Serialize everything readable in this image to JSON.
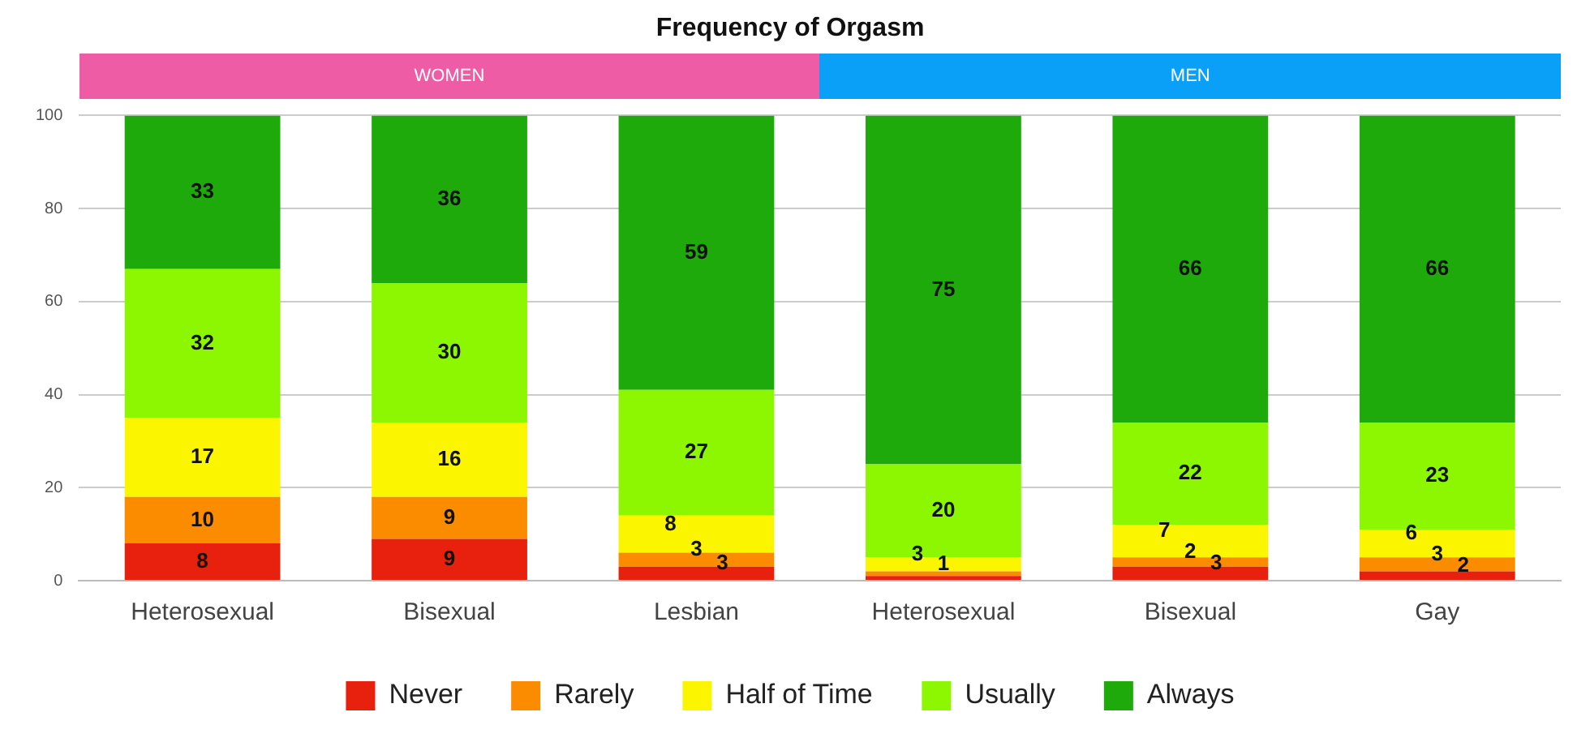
{
  "chart_data": {
    "type": "bar",
    "title": "Frequency of Orgasm",
    "stacked": true,
    "categories": [
      "Heterosexual",
      "Bisexual",
      "Lesbian",
      "Heterosexual",
      "Bisexual",
      "Gay"
    ],
    "series": [
      {
        "name": "Never",
        "color": "#e8210f",
        "values": [
          8,
          9,
          3,
          1,
          3,
          2
        ],
        "value_labels": [
          "8",
          "9",
          "3",
          null,
          "3",
          "2"
        ]
      },
      {
        "name": "Rarely",
        "color": "#fb8c00",
        "values": [
          10,
          9,
          3,
          1,
          2,
          3
        ],
        "value_labels": [
          "10",
          "9",
          "3",
          "1",
          "2",
          "3"
        ]
      },
      {
        "name": "Half of Time",
        "color": "#fcf500",
        "values": [
          17,
          16,
          8,
          3,
          7,
          6
        ],
        "value_labels": [
          "17",
          "16",
          "8",
          "3",
          "7",
          "6"
        ]
      },
      {
        "name": "Usually",
        "color": "#8cf700",
        "values": [
          32,
          30,
          27,
          20,
          22,
          23
        ],
        "value_labels": [
          "32",
          "30",
          "27",
          "20",
          "22",
          "23"
        ]
      },
      {
        "name": "Always",
        "color": "#1eaa0a",
        "values": [
          33,
          36,
          59,
          75,
          66,
          66
        ],
        "value_labels": [
          "33",
          "36",
          "59",
          "75",
          "66",
          "66"
        ]
      }
    ],
    "ylim": [
      0,
      100
    ],
    "yticks": [
      0,
      20,
      40,
      60,
      80,
      100
    ],
    "grid": "y",
    "legend": "bottom",
    "annotations": [
      "WOMEN",
      "MEN"
    ]
  }
}
